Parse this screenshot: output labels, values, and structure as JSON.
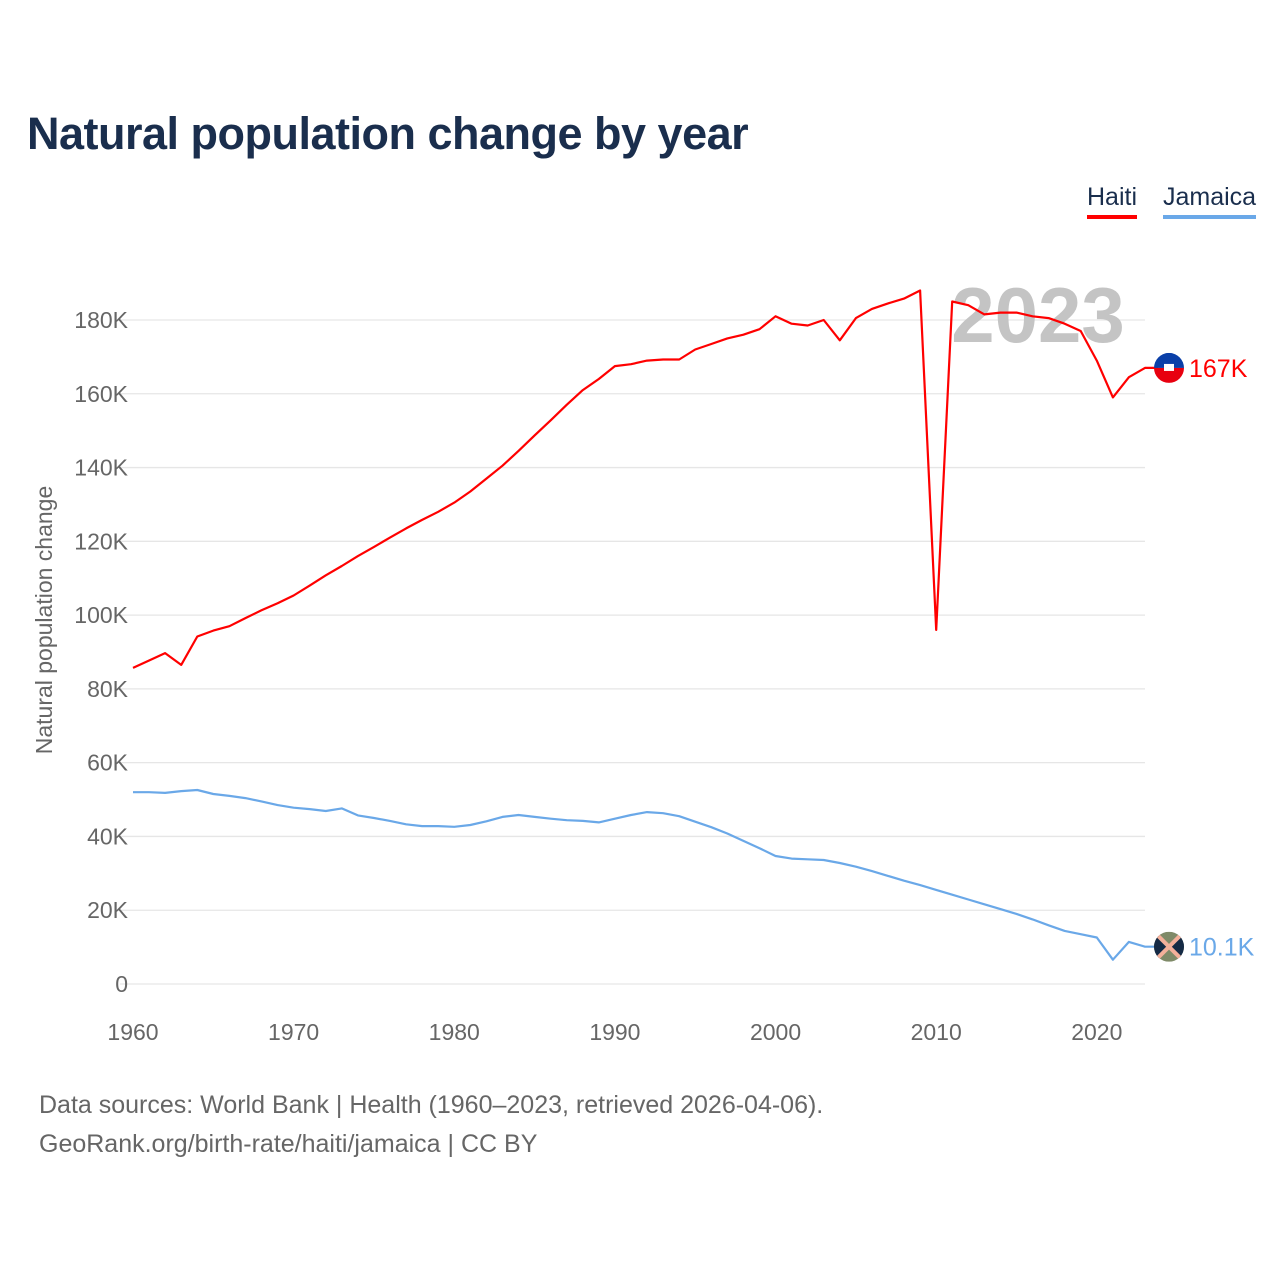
{
  "title": "Natural population change by year",
  "legend": [
    {
      "label": "Haiti",
      "color": "#ff0000"
    },
    {
      "label": "Jamaica",
      "color": "#6aa8e8"
    }
  ],
  "year_watermark": "2023",
  "source": {
    "line1": "Data sources: World Bank | Health (1960–2023, retrieved 2026-04-06).",
    "line2": "GeoRank.org/birth-rate/haiti/jamaica | CC BY"
  },
  "chart_data": {
    "type": "line",
    "title": "Natural population change by year",
    "xlabel": "",
    "ylabel": "Natural population change",
    "xlim": [
      1960,
      2023
    ],
    "ylim": [
      0,
      190000
    ],
    "x_ticks": [
      1960,
      1970,
      1980,
      1990,
      2000,
      2010,
      2020
    ],
    "x_tick_labels": [
      "1960",
      "1970",
      "1980",
      "1990",
      "2000",
      "2010",
      "2020"
    ],
    "y_ticks": [
      0,
      20000,
      40000,
      60000,
      80000,
      100000,
      120000,
      140000,
      160000,
      180000
    ],
    "y_tick_labels": [
      "0",
      "20K",
      "40K",
      "60K",
      "80K",
      "100K",
      "120K",
      "140K",
      "160K",
      "180K"
    ],
    "grid": true,
    "legend_position": "top-right",
    "x_start": 1960,
    "series": [
      {
        "name": "Haiti",
        "color": "#ff0000",
        "end_label": "167K",
        "flag": "haiti-flag",
        "values": [
          85700,
          87700,
          89700,
          86500,
          94200,
          95800,
          97000,
          99200,
          101300,
          103200,
          105300,
          108000,
          110800,
          113300,
          116000,
          118500,
          121000,
          123500,
          125800,
          128000,
          130500,
          133500,
          137000,
          140500,
          144500,
          148700,
          152800,
          157000,
          161000,
          164000,
          167500,
          168000,
          169000,
          169300,
          169300,
          172000,
          173500,
          175000,
          176000,
          177500,
          181000,
          179000,
          178500,
          180000,
          174500,
          180500,
          183000,
          184500,
          185800,
          188000,
          96000,
          185000,
          184000,
          181500,
          182000,
          182000,
          181000,
          180500,
          179000,
          177000,
          169000,
          159000,
          164500,
          167000
        ]
      },
      {
        "name": "Jamaica",
        "color": "#6aa8e8",
        "end_label": "10.1K",
        "flag": "jamaica-flag",
        "values": [
          52000,
          52000,
          51800,
          52300,
          52600,
          51500,
          51000,
          50400,
          49500,
          48500,
          47800,
          47400,
          46900,
          47600,
          45700,
          45000,
          44200,
          43300,
          42800,
          42800,
          42600,
          43100,
          44100,
          45300,
          45800,
          45300,
          44800,
          44400,
          44200,
          43800,
          44800,
          45800,
          46600,
          46300,
          45500,
          44000,
          42500,
          40800,
          38800,
          36800,
          34700,
          34000,
          33800,
          33600,
          32800,
          31800,
          30600,
          29300,
          28000,
          26800,
          25500,
          24200,
          22900,
          21600,
          20300,
          19000,
          17500,
          15900,
          14400,
          13500,
          12600,
          6600,
          11400,
          10100
        ]
      }
    ]
  }
}
